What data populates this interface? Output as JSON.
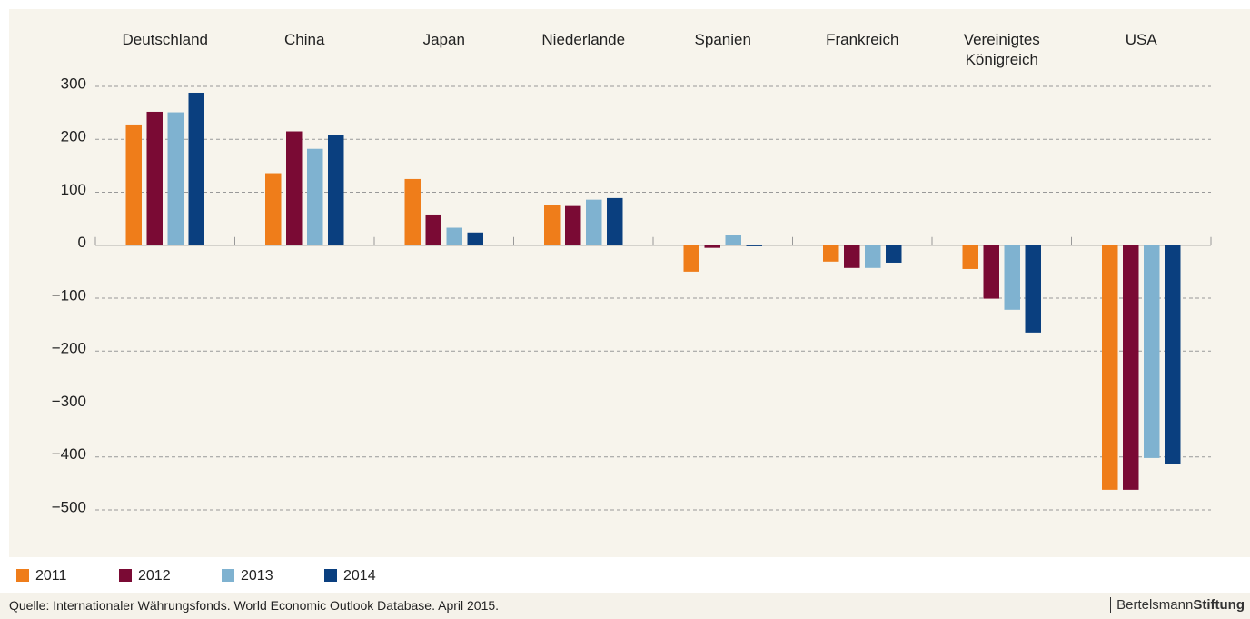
{
  "chart_data": {
    "type": "bar",
    "categories": [
      "Deutschland",
      "China",
      "Japan",
      "Niederlande",
      "Spanien",
      "Frankreich",
      "Vereinigtes Königreich",
      "USA"
    ],
    "series": [
      {
        "name": "2011",
        "color": "#ef7d1a",
        "values": [
          228,
          136,
          125,
          76,
          -50,
          -31,
          -45,
          -462
        ]
      },
      {
        "name": "2012",
        "color": "#7a0a34",
        "values": [
          252,
          215,
          58,
          74,
          -5,
          -43,
          -101,
          -462
        ]
      },
      {
        "name": "2013",
        "color": "#7fb2d0",
        "values": [
          251,
          182,
          33,
          86,
          19,
          -43,
          -122,
          -402
        ]
      },
      {
        "name": "2014",
        "color": "#0a3f7f",
        "values": [
          288,
          209,
          24,
          89,
          -2,
          -33,
          -165,
          -414
        ]
      }
    ],
    "ylim": [
      -500,
      300
    ],
    "yticks": [
      {
        "value": -500,
        "label": "−500"
      },
      {
        "value": -400,
        "label": "−400"
      },
      {
        "value": -300,
        "label": "−300"
      },
      {
        "value": -200,
        "label": "−200"
      },
      {
        "value": -100,
        "label": "−100"
      },
      0,
      100,
      200,
      300
    ],
    "grid": true,
    "source": "Quelle: Internationaler Währungsfonds. World Economic Outlook Database. April 2015.",
    "logo": {
      "light": "Bertelsmann",
      "bold": "Stiftung"
    }
  }
}
